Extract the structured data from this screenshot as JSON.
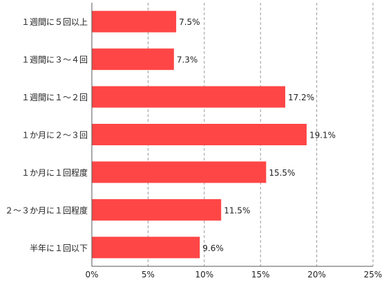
{
  "chart_data": {
    "type": "bar",
    "orientation": "horizontal",
    "categories": [
      "１週間に５回以上",
      "１週間に３～４回",
      "１週間に１～２回",
      "１か月に２～３回",
      "１か月に１回程度",
      "２～３か月に１回程度",
      "半年に１回以下"
    ],
    "values": [
      7.5,
      7.3,
      17.2,
      19.1,
      15.5,
      11.5,
      9.6
    ],
    "value_labels": [
      "7.5%",
      "7.3%",
      "17.2%",
      "19.1%",
      "15.5%",
      "11.5%",
      "9.6%"
    ],
    "xlim": [
      0,
      25
    ],
    "x_ticks": [
      0,
      5,
      10,
      15,
      20,
      25
    ],
    "x_tick_labels": [
      "0%",
      "5%",
      "10%",
      "15%",
      "20%",
      "25%"
    ],
    "grid": "vertical-dashed",
    "legend": "none",
    "bar_color": "#ff4646"
  }
}
